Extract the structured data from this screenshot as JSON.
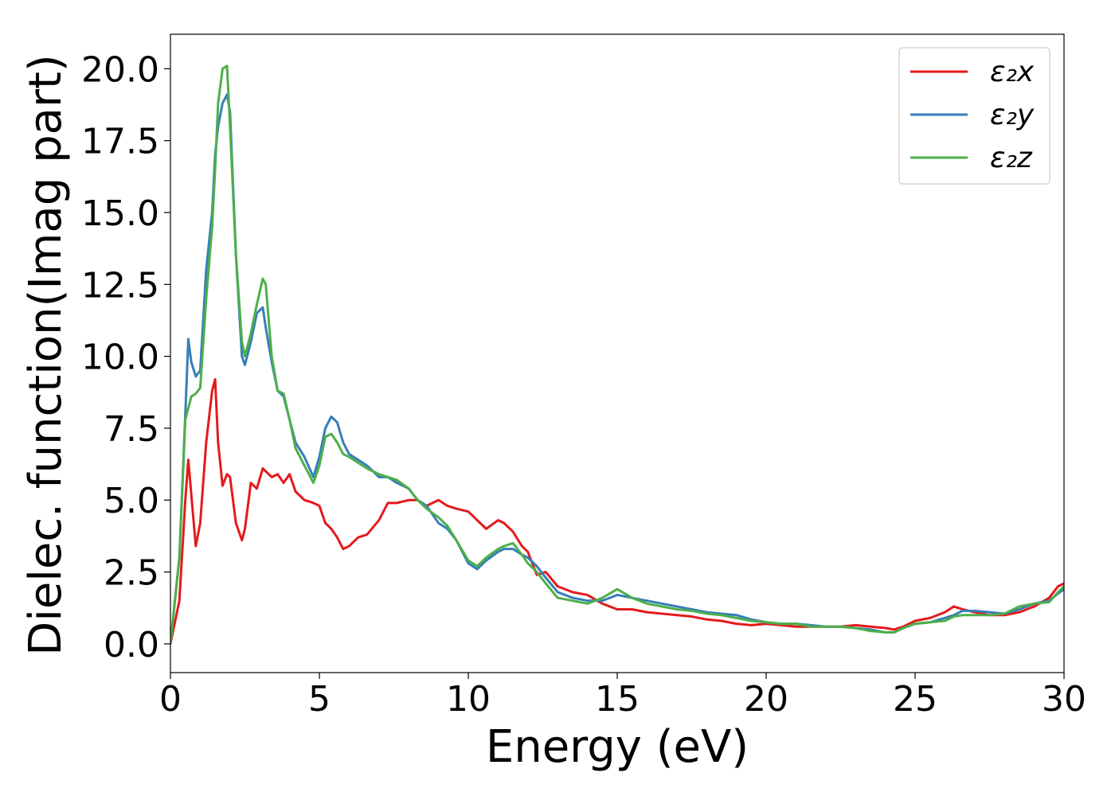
{
  "chart_data": {
    "type": "line",
    "title": "",
    "xlabel": "Energy (eV)",
    "ylabel": "Dielec. function(Imag part)",
    "xlim": [
      0,
      30
    ],
    "ylim": [
      -1.0,
      21.2
    ],
    "xticks": [
      0,
      5,
      10,
      15,
      20,
      25,
      30
    ],
    "xtick_labels": [
      "0",
      "5",
      "10",
      "15",
      "20",
      "25",
      "30"
    ],
    "yticks": [
      0.0,
      2.5,
      5.0,
      7.5,
      10.0,
      12.5,
      15.0,
      17.5,
      20.0
    ],
    "ytick_labels": [
      "0.0",
      "2.5",
      "5.0",
      "7.5",
      "10.0",
      "12.5",
      "15.0",
      "17.5",
      "20.0"
    ],
    "grid": false,
    "legend_position": "top-right",
    "x": [
      0,
      0.3,
      0.5,
      0.6,
      0.7,
      0.85,
      1.0,
      1.2,
      1.4,
      1.5,
      1.6,
      1.75,
      1.9,
      2.0,
      2.2,
      2.4,
      2.5,
      2.7,
      2.9,
      3.1,
      3.2,
      3.4,
      3.6,
      3.8,
      4.0,
      4.2,
      4.5,
      4.8,
      5.0,
      5.2,
      5.4,
      5.6,
      5.8,
      6.0,
      6.3,
      6.6,
      7.0,
      7.3,
      7.6,
      8.0,
      8.3,
      8.6,
      9.0,
      9.3,
      9.6,
      10.0,
      10.3,
      10.6,
      11.0,
      11.2,
      11.5,
      11.8,
      12.0,
      12.3,
      12.6,
      13.0,
      13.5,
      14.0,
      14.5,
      15.0,
      15.5,
      16.0,
      16.5,
      17.0,
      17.5,
      18.0,
      18.5,
      19.0,
      19.5,
      20.0,
      20.5,
      21.0,
      21.5,
      22.0,
      22.5,
      23.0,
      23.5,
      24.0,
      24.3,
      24.6,
      25.0,
      25.5,
      26.0,
      26.3,
      26.6,
      27.0,
      27.5,
      28.0,
      28.5,
      29.0,
      29.5,
      29.8,
      30.0
    ],
    "series": [
      {
        "name": "ε₂x",
        "color": "#e41a1c",
        "values": [
          0,
          1.5,
          5.0,
          6.4,
          5.2,
          3.4,
          4.2,
          7.0,
          8.8,
          9.2,
          7.0,
          5.5,
          5.9,
          5.8,
          4.2,
          3.6,
          4.0,
          5.6,
          5.4,
          6.1,
          6.0,
          5.8,
          5.9,
          5.6,
          5.9,
          5.3,
          5.0,
          4.9,
          4.8,
          4.2,
          4.0,
          3.7,
          3.3,
          3.4,
          3.7,
          3.8,
          4.3,
          4.9,
          4.9,
          5.0,
          5.0,
          4.8,
          5.0,
          4.8,
          4.7,
          4.6,
          4.3,
          4.0,
          4.3,
          4.2,
          3.9,
          3.4,
          3.2,
          2.4,
          2.5,
          2.0,
          1.8,
          1.7,
          1.4,
          1.2,
          1.2,
          1.1,
          1.05,
          1.0,
          0.95,
          0.85,
          0.8,
          0.7,
          0.65,
          0.7,
          0.65,
          0.6,
          0.6,
          0.6,
          0.6,
          0.65,
          0.6,
          0.55,
          0.5,
          0.6,
          0.8,
          0.9,
          1.1,
          1.3,
          1.2,
          1.1,
          1.0,
          1.0,
          1.1,
          1.3,
          1.6,
          2.0,
          2.1
        ]
      },
      {
        "name": "ε₂y",
        "color": "#377eb8",
        "values": [
          0,
          3.0,
          8.0,
          10.6,
          9.8,
          9.3,
          9.5,
          13.0,
          15.0,
          17.0,
          18.0,
          18.8,
          19.1,
          18.5,
          13.5,
          10.0,
          9.7,
          10.5,
          11.5,
          11.7,
          11.0,
          9.8,
          8.8,
          8.6,
          7.8,
          7.0,
          6.5,
          5.8,
          6.5,
          7.5,
          7.9,
          7.7,
          7.0,
          6.6,
          6.4,
          6.2,
          5.8,
          5.8,
          5.6,
          5.4,
          5.0,
          4.8,
          4.2,
          4.0,
          3.6,
          2.8,
          2.6,
          2.9,
          3.2,
          3.3,
          3.3,
          3.1,
          3.0,
          2.7,
          2.3,
          1.8,
          1.6,
          1.5,
          1.5,
          1.7,
          1.6,
          1.5,
          1.4,
          1.3,
          1.2,
          1.1,
          1.05,
          1.0,
          0.85,
          0.75,
          0.7,
          0.7,
          0.65,
          0.6,
          0.6,
          0.55,
          0.5,
          0.4,
          0.4,
          0.55,
          0.7,
          0.75,
          0.9,
          1.0,
          1.15,
          1.15,
          1.1,
          1.05,
          1.2,
          1.4,
          1.5,
          1.75,
          1.9
        ]
      },
      {
        "name": "ε₂z",
        "color": "#4daf4a",
        "values": [
          0,
          3.0,
          7.8,
          8.2,
          8.6,
          8.7,
          8.9,
          12.0,
          14.5,
          16.5,
          18.8,
          20.0,
          20.1,
          18.0,
          13.5,
          10.5,
          10.0,
          10.8,
          11.8,
          12.7,
          12.5,
          10.0,
          8.8,
          8.7,
          7.8,
          6.8,
          6.2,
          5.6,
          6.2,
          7.2,
          7.3,
          7.0,
          6.6,
          6.5,
          6.3,
          6.1,
          5.9,
          5.8,
          5.7,
          5.4,
          5.0,
          4.7,
          4.4,
          4.1,
          3.6,
          2.9,
          2.7,
          3.0,
          3.3,
          3.4,
          3.5,
          3.1,
          2.8,
          2.5,
          2.1,
          1.6,
          1.5,
          1.4,
          1.6,
          1.9,
          1.6,
          1.4,
          1.3,
          1.2,
          1.15,
          1.05,
          1.0,
          0.9,
          0.8,
          0.75,
          0.7,
          0.7,
          0.6,
          0.6,
          0.6,
          0.55,
          0.45,
          0.4,
          0.4,
          0.55,
          0.7,
          0.75,
          0.8,
          0.95,
          1.0,
          1.0,
          1.0,
          1.05,
          1.3,
          1.4,
          1.45,
          1.8,
          2.0
        ]
      }
    ]
  }
}
